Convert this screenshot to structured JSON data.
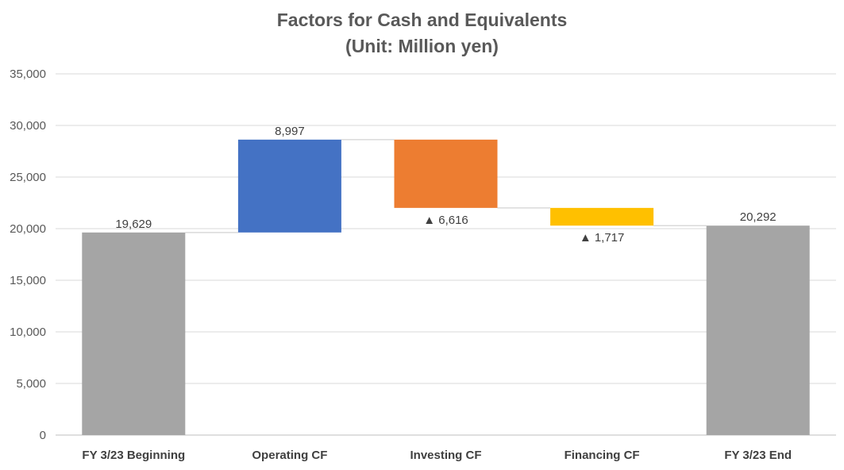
{
  "chart_data": {
    "type": "bar",
    "subtype": "waterfall",
    "title": "Factors for Cash and Equivalents",
    "subtitle": "(Unit: Million yen)",
    "xlabel": "",
    "ylabel": "",
    "ylim": [
      0,
      35000
    ],
    "yticks": [
      0,
      5000,
      10000,
      15000,
      20000,
      25000,
      30000,
      35000
    ],
    "ytick_labels": [
      "0",
      "5,000",
      "10,000",
      "15,000",
      "20,000",
      "25,000",
      "30,000",
      "35,000"
    ],
    "grid": true,
    "legend": "none",
    "categories": [
      "FY 3/23 Beginning",
      "Operating CF",
      "Investing CF",
      "Financing CF",
      "FY 3/23 End"
    ],
    "bars": [
      {
        "category": "FY 3/23 Beginning",
        "kind": "total",
        "start": 0,
        "end": 19629,
        "label": "19,629",
        "color": "#a5a5a5"
      },
      {
        "category": "Operating CF",
        "kind": "increase",
        "start": 19629,
        "end": 28626,
        "label": "8,997",
        "color": "#4472c4"
      },
      {
        "category": "Investing CF",
        "kind": "decrease",
        "start": 28626,
        "end": 22010,
        "label": "▲ 6,616",
        "color": "#ed7d31"
      },
      {
        "category": "Financing CF",
        "kind": "decrease",
        "start": 22010,
        "end": 20293,
        "label": "▲ 1,717",
        "color": "#ffc000"
      },
      {
        "category": "FY 3/23 End",
        "kind": "total",
        "start": 0,
        "end": 20292,
        "label": "20,292",
        "color": "#a5a5a5"
      }
    ],
    "colors": {
      "grid": "#d9d9d9",
      "axis": "#bfbfbf",
      "connector": "#d9d9d9"
    }
  }
}
